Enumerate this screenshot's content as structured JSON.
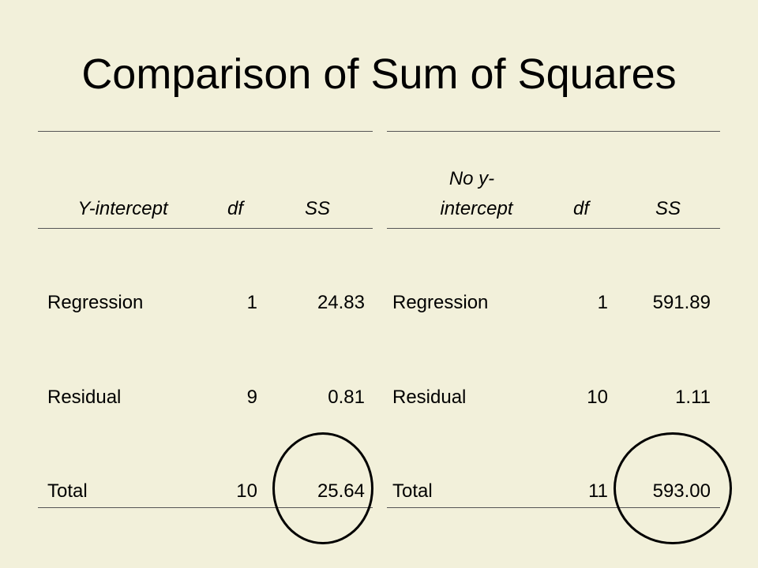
{
  "title": "Comparison of Sum of Squares",
  "left_table": {
    "headers": [
      "Y-intercept",
      "df",
      "SS"
    ],
    "rows": [
      {
        "label": "Regression",
        "df": "1",
        "ss": "24.83"
      },
      {
        "label": "Residual",
        "df": "9",
        "ss": "0.81"
      },
      {
        "label": "Total",
        "df": "10",
        "ss": "25.64"
      }
    ]
  },
  "right_table": {
    "headers": [
      "No y-\nintercept",
      "df",
      "SS"
    ],
    "header_line1": "No y-",
    "header_line2": "intercept",
    "rows": [
      {
        "label": "Regression",
        "df": "1",
        "ss": "591.89"
      },
      {
        "label": "Residual",
        "df": "10",
        "ss": "1.11"
      },
      {
        "label": "Total",
        "df": "11",
        "ss": "593.00"
      }
    ]
  },
  "annotations": [
    "circle-around-left-total-ss",
    "circle-around-right-total-ss"
  ]
}
